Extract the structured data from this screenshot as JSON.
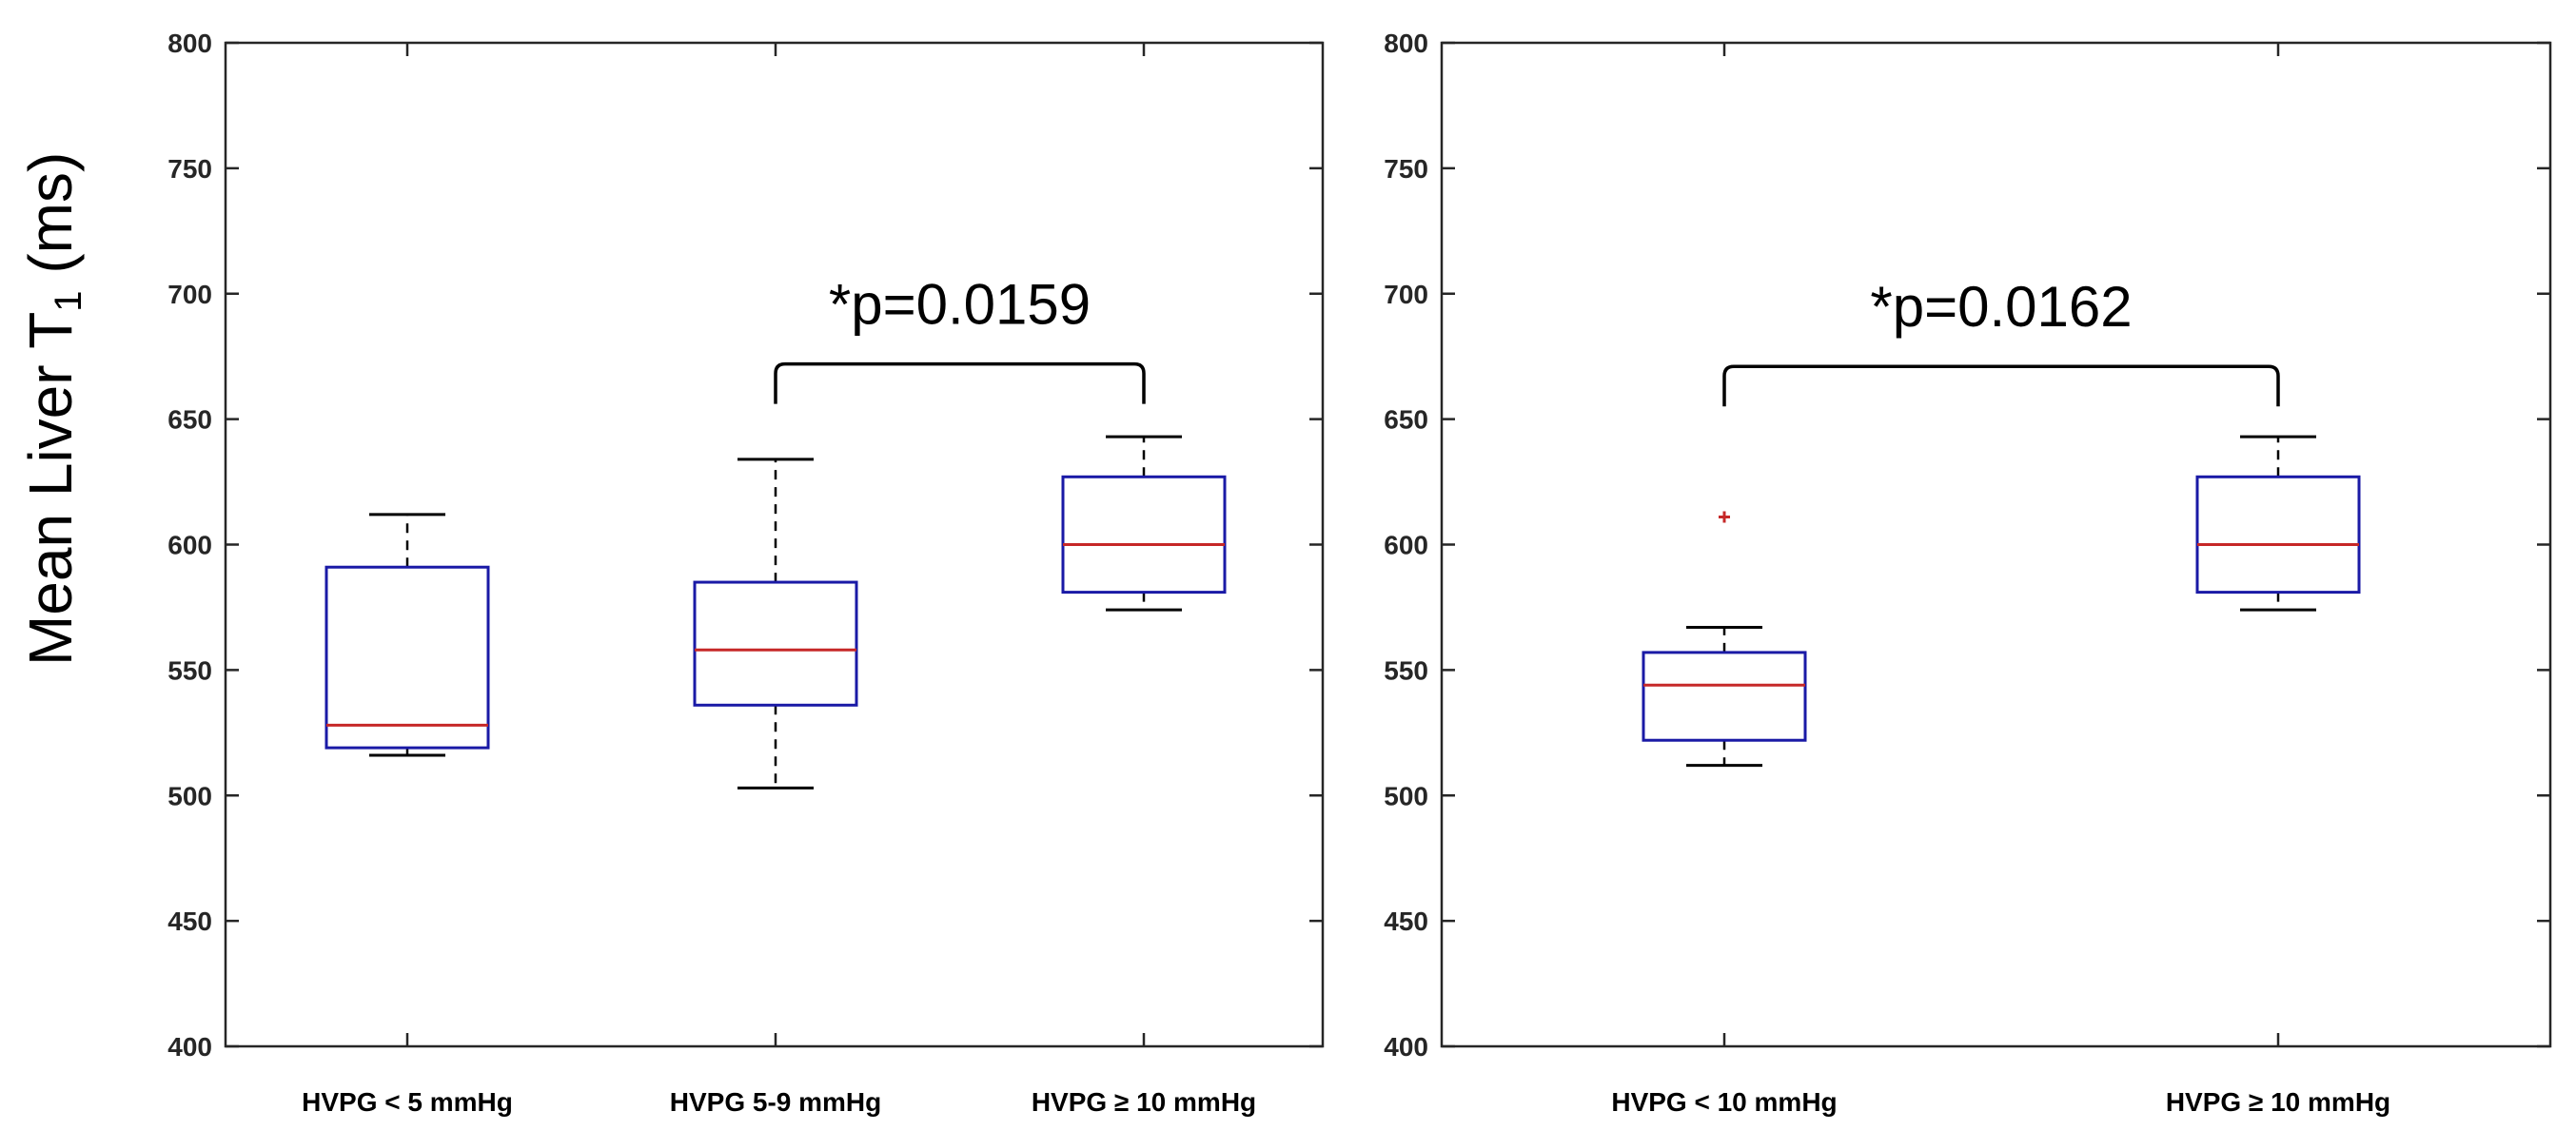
{
  "ylabel": {
    "main": "Mean Liver T",
    "sub": "1",
    "unit": " (ms)"
  },
  "colors": {
    "box": "#1a1aa6",
    "median": "#c62828",
    "whisker": "#000000",
    "outlier": "#c62828",
    "axis": "#262626",
    "annotation": "#000000"
  },
  "chart_data": [
    {
      "type": "box",
      "ylim": [
        400,
        800
      ],
      "yticks": [
        400,
        450,
        500,
        550,
        600,
        650,
        700,
        750,
        800
      ],
      "ytick_labels": [
        "400",
        "450",
        "500",
        "550",
        "600",
        "650",
        "700",
        "750",
        "800"
      ],
      "xlabel": "",
      "ylabel": "Mean Liver T1 (ms)",
      "groups": [
        {
          "label": "HVPG < 5 mmHg",
          "whisker_low": 516,
          "q1": 519,
          "median": 528,
          "q3": 591,
          "whisker_high": 612,
          "outliers": []
        },
        {
          "label": "HVPG 5-9 mmHg",
          "whisker_low": 503,
          "q1": 536,
          "median": 558,
          "q3": 585,
          "whisker_high": 634,
          "outliers": []
        },
        {
          "label": "HVPG ≥ 10 mmHg",
          "whisker_low": 574,
          "q1": 581,
          "median": 600,
          "q3": 627,
          "whisker_high": 643,
          "outliers": []
        }
      ],
      "annotation": {
        "text": "*p=0.0159",
        "from_group": 1,
        "to_group": 2,
        "level": 672
      }
    },
    {
      "type": "box",
      "ylim": [
        400,
        800
      ],
      "yticks": [
        400,
        450,
        500,
        550,
        600,
        650,
        700,
        750,
        800
      ],
      "ytick_labels": [
        "400",
        "450",
        "500",
        "550",
        "600",
        "650",
        "700",
        "750",
        "800"
      ],
      "xlabel": "",
      "ylabel": "",
      "groups": [
        {
          "label": "HVPG < 10 mmHg",
          "whisker_low": 512,
          "q1": 522,
          "median": 544,
          "q3": 557,
          "whisker_high": 567,
          "outliers": [
            611
          ]
        },
        {
          "label": "HVPG ≥ 10 mmHg",
          "whisker_low": 574,
          "q1": 581,
          "median": 600,
          "q3": 627,
          "whisker_high": 643,
          "outliers": []
        }
      ],
      "annotation": {
        "text": "*p=0.0162",
        "from_group": 0,
        "to_group": 1,
        "level": 671
      }
    }
  ]
}
